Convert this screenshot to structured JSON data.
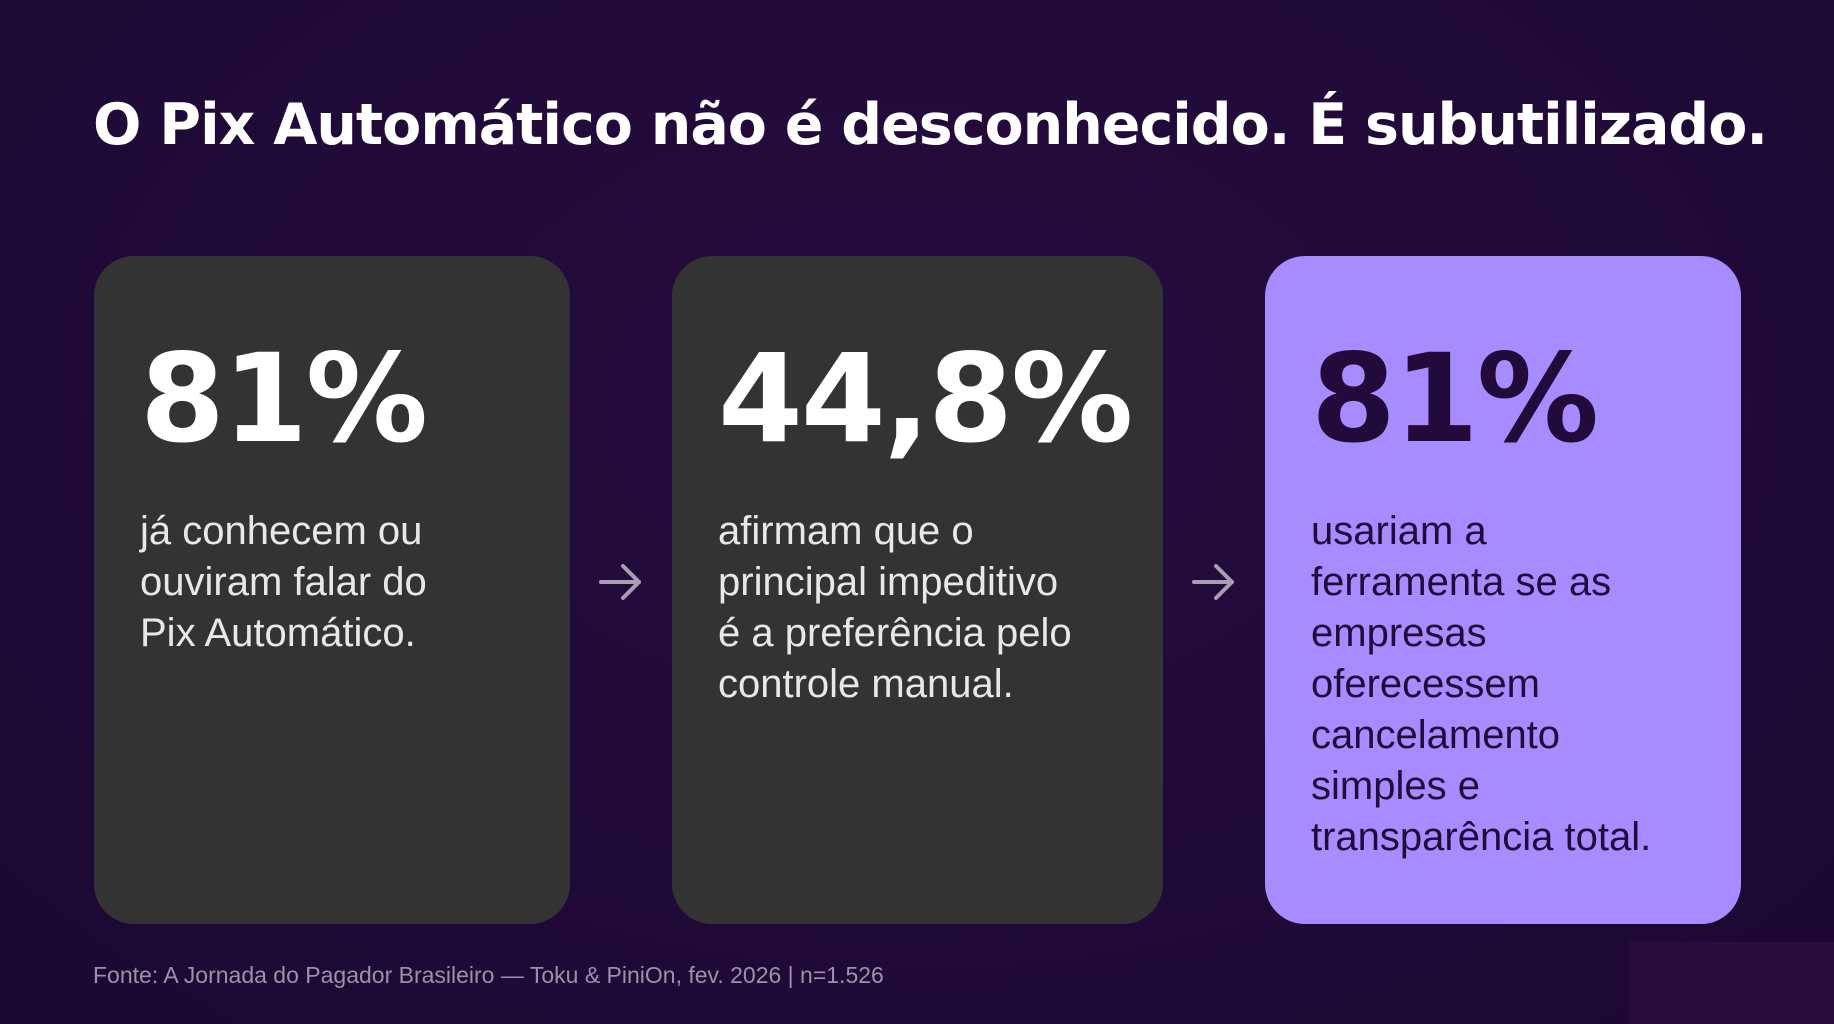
{
  "slide": {
    "title": "O Pix Automático não é desconhecido. É subutilizado.",
    "cards": [
      {
        "value": "81%",
        "lines": [
          "já conhecem ou",
          "ouviram falar do",
          "Pix Automático."
        ]
      },
      {
        "value": "44,8%",
        "lines": [
          "afirmam que o",
          "principal impeditivo",
          "é a preferência pelo",
          "controle manual."
        ]
      },
      {
        "value": "81%",
        "lines": [
          "usariam a",
          "ferramenta se as",
          "empresas",
          "oferecessem",
          "cancelamento",
          "simples e",
          "transparência total."
        ]
      }
    ],
    "source": "Fonte: A Jornada do Pagador Brasileiro — Toku & PiniOn, fev. 2026 | n=1.526",
    "colors": {
      "background": "#220a3a",
      "card_dark": "#333333",
      "card_highlight": "#a88bff",
      "arrow": "#a89db4"
    },
    "icons": [
      "arrow-right-icon",
      "arrow-right-icon"
    ]
  }
}
